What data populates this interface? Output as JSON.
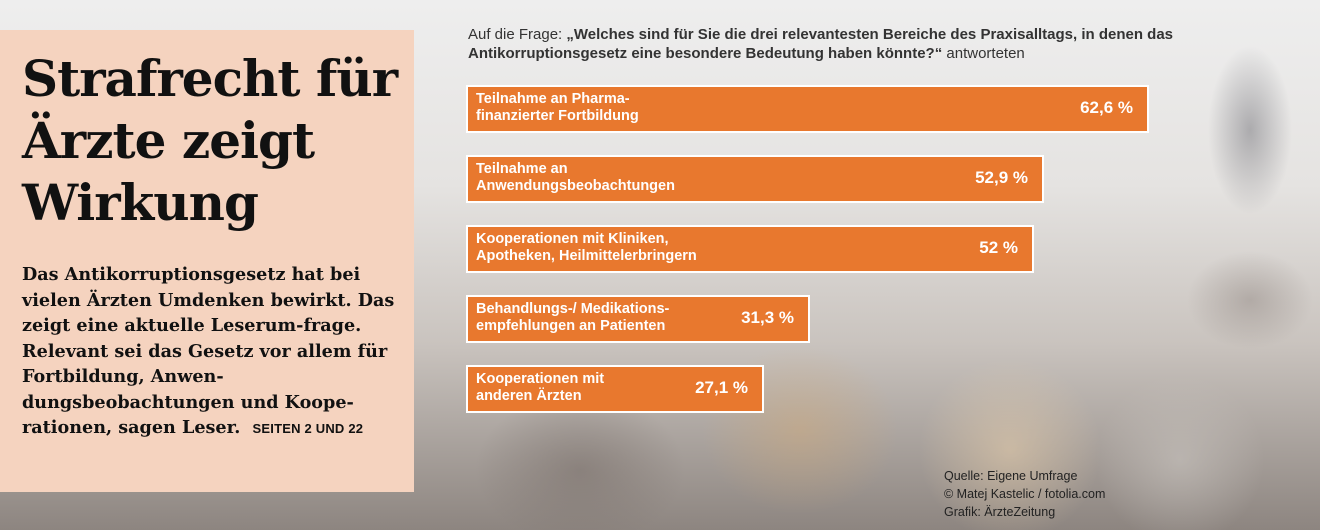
{
  "headline": "Strafrecht für Ärzte zeigt Wirkung",
  "lead_text": "Das Antikorruptionsgesetz hat bei vielen Ärzten Umdenken bewirkt. Das zeigt eine aktuelle Leserum-frage. Relevant sei das Gesetz vor allem für Fortbildung, Anwen-dungsbeobachtungen und Koope-rationen, sagen Leser.",
  "page_ref": "SEITEN 2 UND 22",
  "question": {
    "prefix": "Auf die Frage: ",
    "bold": "„Welches sind für Sie die drei relevantesten Bereiche des Praxisalltags, in denen das Antikorruptionsgesetz eine besondere Bedeutung haben könnte?“",
    "suffix": " antworteten"
  },
  "chart_data": {
    "type": "bar",
    "orientation": "horizontal",
    "categories": [
      "Teilnahme an Pharma-finanzierter Fortbildung",
      "Teilnahme an Anwendungsbeobachtungen",
      "Kooperationen mit Kliniken, Apotheken, Heilmittelerbringern",
      "Behandlungs-/ Medikations-empfehlungen an Patienten",
      "Kooperationen mit anderen Ärzten"
    ],
    "category_lines": [
      [
        "Teilnahme an Pharma-",
        "finanzierter Fortbildung"
      ],
      [
        "Teilnahme an",
        "Anwendungsbeobachtungen"
      ],
      [
        "Kooperationen mit Kliniken,",
        "Apotheken, Heilmittelerbringern"
      ],
      [
        "Behandlungs-/ Medikations-",
        "empfehlungen an Patienten"
      ],
      [
        "Kooperationen mit",
        "anderen Ärzten"
      ]
    ],
    "values": [
      62.6,
      52.9,
      52,
      31.3,
      27.1
    ],
    "value_labels": [
      "62,6 %",
      "52,9 %",
      "52 %",
      "31,3 %",
      "27,1 %"
    ],
    "unit": "%",
    "bar_color": "#e8782e",
    "xlim": [
      0,
      100
    ]
  },
  "credits": [
    "Quelle: Eigene Umfrage",
    "© Matej Kastelic / fotolia.com",
    "Grafik: ÄrzteZeitung"
  ]
}
